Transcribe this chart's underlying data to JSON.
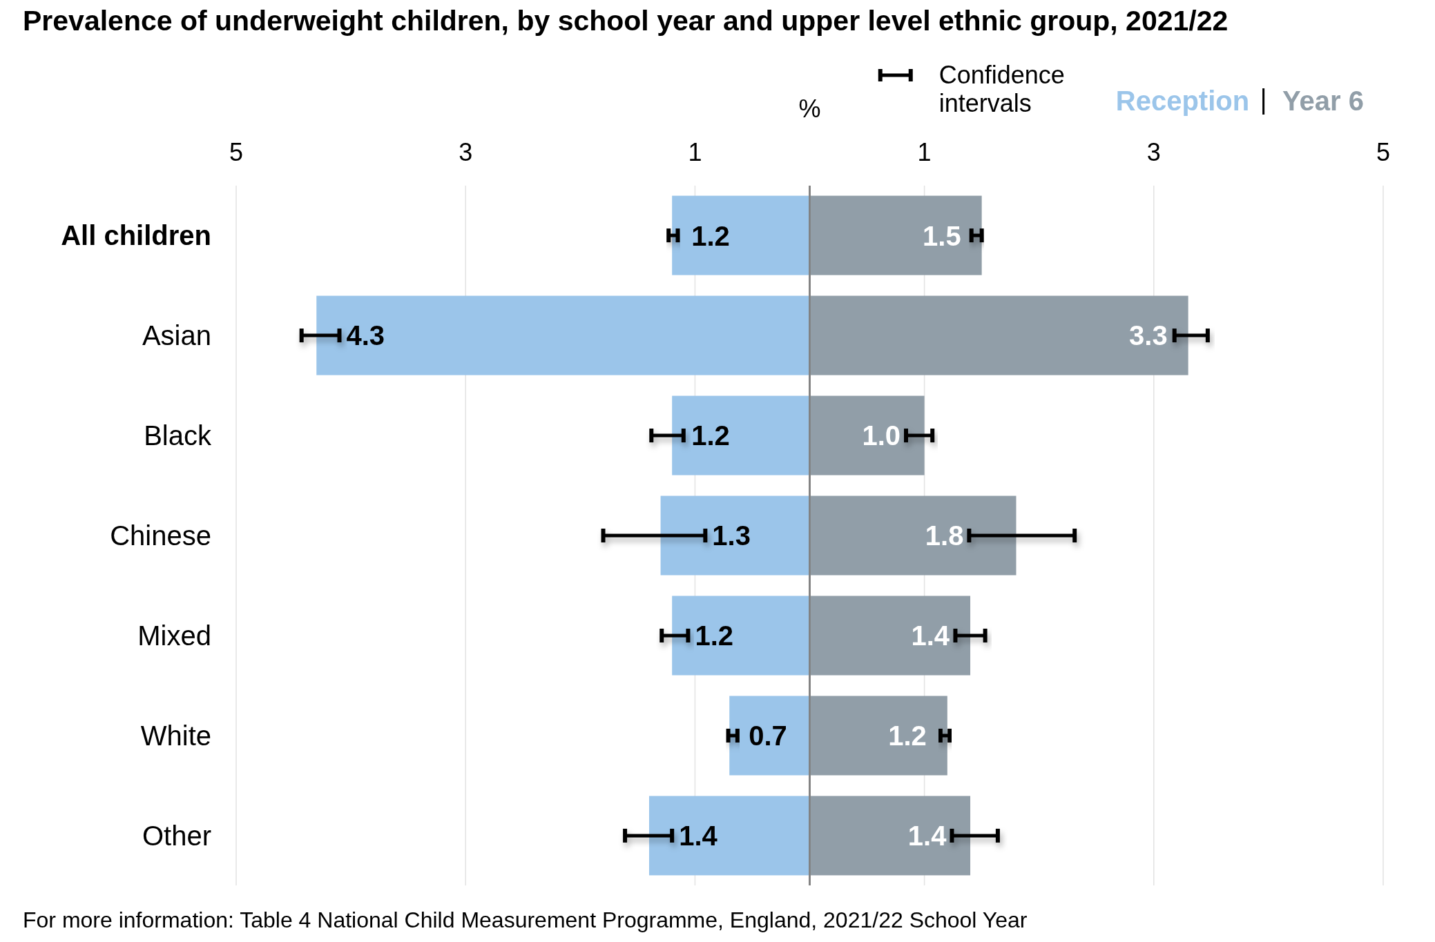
{
  "chart_data": [
    {
      "type": "bar",
      "orientation": "horizontal",
      "title": "Prevalence of underweight children, by school year and upper level ethnic group, 2021/22",
      "xlabel": "%",
      "categories": [
        "All children",
        "Asian",
        "Black",
        "Chinese",
        "Mixed",
        "White",
        "Other"
      ],
      "series": [
        {
          "name": "Reception",
          "color": "#9bc5ea",
          "values": [
            1.2,
            4.3,
            1.2,
            1.3,
            1.2,
            0.7,
            1.4
          ],
          "errors": [
            [
              1.15,
              1.23
            ],
            [
              4.1,
              4.43
            ],
            [
              1.1,
              1.38
            ],
            [
              0.91,
              1.8
            ],
            [
              1.06,
              1.29
            ],
            [
              0.63,
              0.71
            ],
            [
              1.2,
              1.61
            ]
          ],
          "value_labels": [
            "1.2",
            "4.3",
            "1.2",
            "1.3",
            "1.2",
            "0.7",
            "1.4"
          ]
        }
      ],
      "xlim": [
        5,
        0
      ],
      "xticks": [
        5,
        3,
        1
      ],
      "grid": "x",
      "legend": "top right",
      "annotations": [
        "Confidence intervals",
        "For more information: Table 4 National Child Measurement Programme, England, 2021/22 School Year"
      ]
    },
    {
      "type": "bar",
      "orientation": "horizontal",
      "categories": [
        "All children",
        "Asian",
        "Black",
        "Chinese",
        "Mixed",
        "White",
        "Other"
      ],
      "tick_labels": "x",
      "series": [
        {
          "name": "Year 6",
          "color": "#919ea8",
          "values": [
            1.5,
            3.3,
            1.0,
            1.8,
            1.4,
            1.2,
            1.4
          ],
          "errors": [
            [
              1.41,
              1.5
            ],
            [
              3.18,
              3.47
            ],
            [
              0.84,
              1.07
            ],
            [
              1.39,
              2.31
            ],
            [
              1.27,
              1.53
            ],
            [
              1.14,
              1.22
            ],
            [
              1.24,
              1.64
            ]
          ],
          "value_labels": [
            "1.5",
            "3.3",
            "1.0",
            "1.8",
            "1.4",
            "1.2",
            "1.4"
          ]
        }
      ],
      "xlim": [
        0,
        5
      ],
      "xticks": [
        1,
        3,
        5
      ],
      "grid": "x",
      "legend": "top right"
    }
  ]
}
